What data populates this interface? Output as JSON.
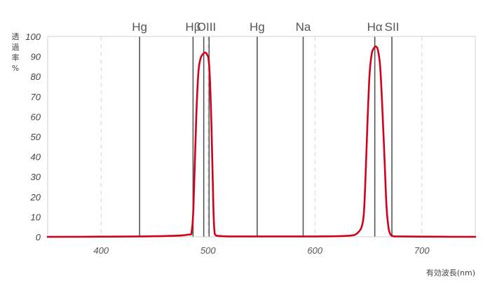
{
  "chart_data": {
    "type": "line",
    "ylabel": "透過率%",
    "xlabel": "有効波長(nm)",
    "xlim": [
      350,
      750
    ],
    "ylim": [
      0,
      100
    ],
    "x_ticks": [
      400,
      500,
      600,
      700
    ],
    "y_ticks": [
      0,
      10,
      20,
      30,
      40,
      50,
      60,
      70,
      80,
      90,
      100
    ],
    "grid": "dashed vertical at 400, 500, 600, 700",
    "emission_lines": [
      {
        "label": "Hg",
        "x": 436
      },
      {
        "label": "Hβ",
        "x": 486
      },
      {
        "label": "OIII",
        "x": 496
      },
      {
        "label": "OIII",
        "x": 501
      },
      {
        "label": "Hg",
        "x": 546
      },
      {
        "label": "Na",
        "x": 589
      },
      {
        "label": "Hα",
        "x": 656
      },
      {
        "label": "SII",
        "x": 672
      }
    ],
    "series": [
      {
        "color": "#d0021b",
        "x": [
          350,
          400,
          450,
          480,
          485,
          487,
          489,
          491,
          493,
          495,
          497,
          499,
          501,
          503,
          505,
          506,
          507,
          509,
          520,
          550,
          600,
          630,
          640,
          645,
          647,
          649,
          651,
          653,
          655,
          657,
          659,
          661,
          663,
          665,
          667,
          669,
          671,
          673,
          675,
          680,
          700,
          750
        ],
        "y": [
          0,
          0.1,
          0.3,
          1,
          4,
          25,
          60,
          82,
          89,
          91,
          92,
          91,
          86,
          60,
          15,
          3,
          1,
          0.5,
          0.2,
          0.2,
          0.2,
          0.5,
          2,
          8,
          25,
          55,
          80,
          91,
          94,
          95,
          93,
          85,
          65,
          40,
          15,
          4,
          1,
          0.4,
          0.2,
          0.2,
          0.1,
          0
        ]
      }
    ]
  }
}
